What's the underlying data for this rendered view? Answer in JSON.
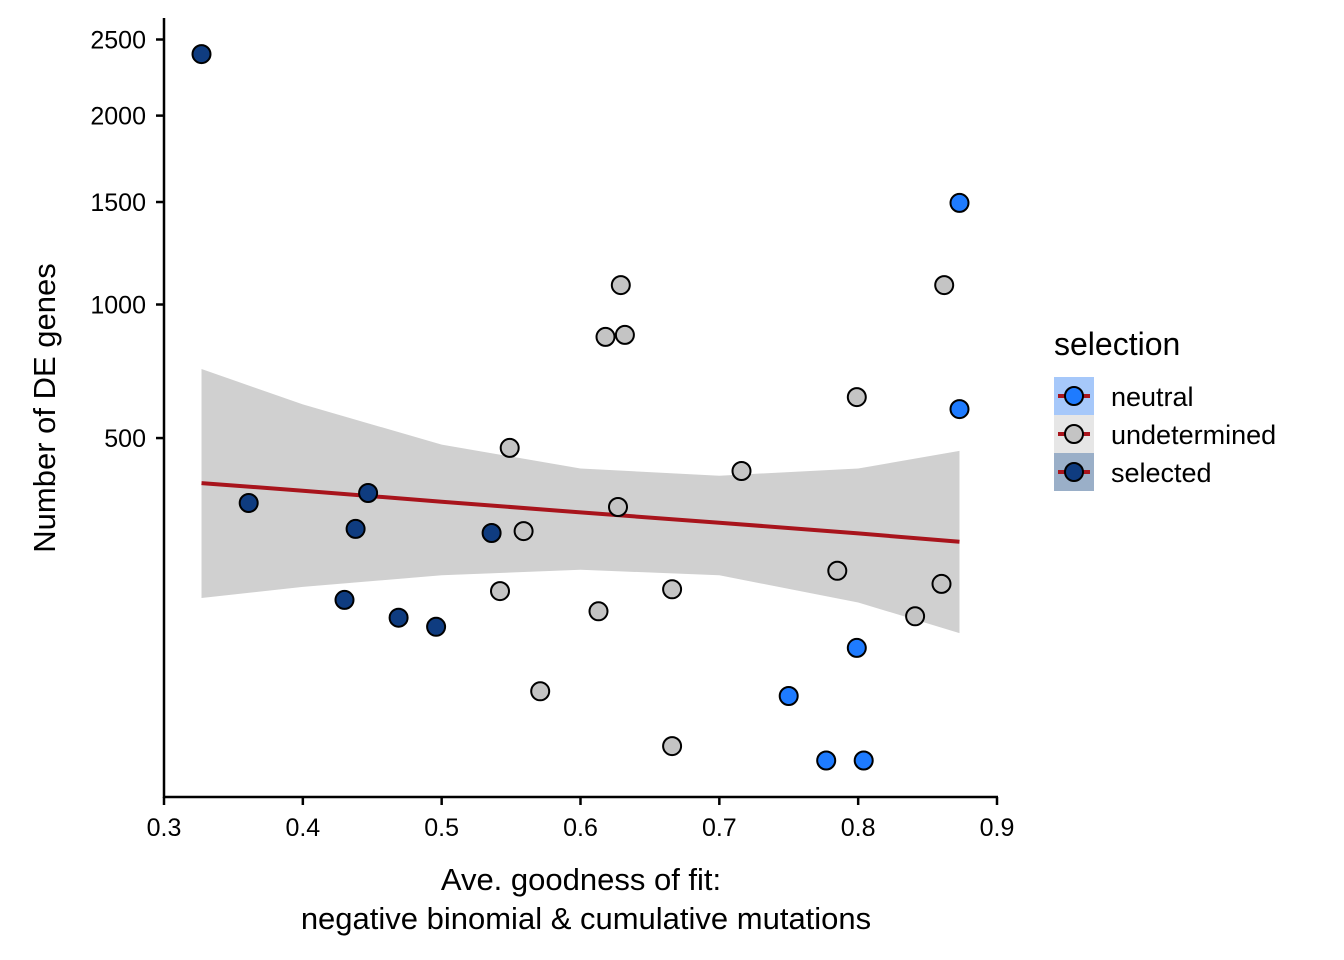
{
  "chart_data": {
    "type": "scatter",
    "title": "",
    "xlabel": [
      "Ave. goodness of fit:",
      "negative binomial & cumulative mutations"
    ],
    "ylabel": "Number of DE genes",
    "y_scale": "sqrt",
    "xlim": [
      0.3,
      0.9
    ],
    "ylim": [
      0,
      2600
    ],
    "x_ticks": [
      0.3,
      0.4,
      0.5,
      0.6,
      0.7,
      0.8,
      0.9
    ],
    "x_tick_labels": [
      "0.3",
      "0.4",
      "0.5",
      "0.6",
      "0.7",
      "0.8",
      "0.9"
    ],
    "y_ticks": [
      500,
      1000,
      1500,
      2000,
      2500
    ],
    "y_tick_labels": [
      "500",
      "1000",
      "1500",
      "2000",
      "2500"
    ],
    "grid": false,
    "legend": {
      "title": "selection",
      "placement": "right",
      "entries": [
        {
          "label": "neutral",
          "color": "#1E7BFF",
          "bg": "#A6C8FA"
        },
        {
          "label": "undetermined",
          "color": "#C4C4C4",
          "bg": "#E6E6E6"
        },
        {
          "label": "selected",
          "color": "#0F3C80",
          "bg": "#9AAFC8"
        }
      ]
    },
    "series": [
      {
        "name": "selected",
        "color": "#0F3C80",
        "points": [
          {
            "x": 0.327,
            "y": 2400
          },
          {
            "x": 0.361,
            "y": 319
          },
          {
            "x": 0.447,
            "y": 344
          },
          {
            "x": 0.438,
            "y": 258
          },
          {
            "x": 0.536,
            "y": 249
          },
          {
            "x": 0.43,
            "y": 124
          },
          {
            "x": 0.469,
            "y": 98
          },
          {
            "x": 0.496,
            "y": 86
          }
        ]
      },
      {
        "name": "undetermined",
        "color": "#C4C4C4",
        "points": [
          {
            "x": 0.629,
            "y": 1087
          },
          {
            "x": 0.618,
            "y": 863
          },
          {
            "x": 0.632,
            "y": 871
          },
          {
            "x": 0.549,
            "y": 470
          },
          {
            "x": 0.716,
            "y": 403
          },
          {
            "x": 0.627,
            "y": 309
          },
          {
            "x": 0.559,
            "y": 253
          },
          {
            "x": 0.542,
            "y": 138
          },
          {
            "x": 0.613,
            "y": 107
          },
          {
            "x": 0.666,
            "y": 141
          },
          {
            "x": 0.571,
            "y": 23
          },
          {
            "x": 0.666,
            "y": 1
          },
          {
            "x": 0.799,
            "y": 635
          },
          {
            "x": 0.862,
            "y": 1087
          },
          {
            "x": 0.785,
            "y": 173
          },
          {
            "x": 0.86,
            "y": 150
          },
          {
            "x": 0.841,
            "y": 100
          }
        ]
      },
      {
        "name": "neutral",
        "color": "#1E7BFF",
        "points": [
          {
            "x": 0.873,
            "y": 1495
          },
          {
            "x": 0.873,
            "y": 594
          },
          {
            "x": 0.799,
            "y": 61
          },
          {
            "x": 0.75,
            "y": 20
          },
          {
            "x": 0.777,
            "y": 0
          },
          {
            "x": 0.804,
            "y": 0
          }
        ]
      }
    ],
    "fit": {
      "method": "lm",
      "color": "#A8141C",
      "band_color": "#D0D0D0",
      "x": [
        0.327,
        0.4,
        0.5,
        0.6,
        0.7,
        0.8,
        0.873
      ],
      "y": [
        370,
        350,
        322,
        296,
        272,
        248,
        230
      ],
      "lower": [
        127,
        145,
        165,
        175,
        165,
        120,
        78
      ],
      "upper": [
        737,
        610,
        480,
        410,
        390,
        410,
        461
      ]
    }
  }
}
